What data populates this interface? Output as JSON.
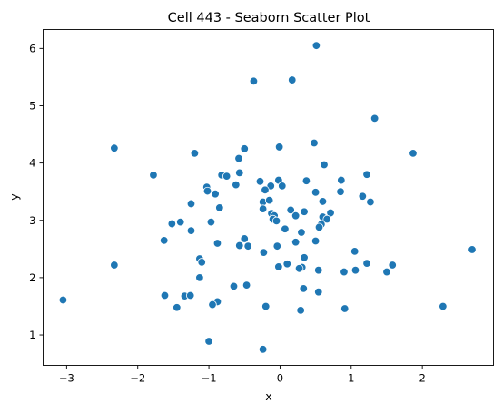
{
  "chart_data": {
    "type": "scatter",
    "title": "Cell 443 - Seaborn Scatter Plot",
    "xlabel": "x",
    "ylabel": "y",
    "xlim": [
      -3.33,
      3.0
    ],
    "ylim": [
      0.47,
      6.33
    ],
    "xticks": [
      -3,
      -2,
      -1,
      0,
      1,
      2
    ],
    "yticks": [
      1,
      2,
      3,
      4,
      5,
      6
    ],
    "grid": false,
    "marker_color": "#1f77b4",
    "points": [
      [
        0.51,
        6.05
      ],
      [
        -0.37,
        5.43
      ],
      [
        0.17,
        5.45
      ],
      [
        1.33,
        4.78
      ],
      [
        -2.33,
        4.26
      ],
      [
        -1.2,
        4.17
      ],
      [
        -0.5,
        4.25
      ],
      [
        -0.01,
        4.28
      ],
      [
        0.48,
        4.35
      ],
      [
        1.87,
        4.17
      ],
      [
        -0.58,
        4.08
      ],
      [
        0.62,
        3.97
      ],
      [
        -1.78,
        3.79
      ],
      [
        -0.82,
        3.79
      ],
      [
        -0.75,
        3.77
      ],
      [
        -0.57,
        3.83
      ],
      [
        1.22,
        3.8
      ],
      [
        -0.28,
        3.68
      ],
      [
        -0.13,
        3.6
      ],
      [
        -0.02,
        3.7
      ],
      [
        0.03,
        3.6
      ],
      [
        0.37,
        3.69
      ],
      [
        0.86,
        3.7
      ],
      [
        -1.03,
        3.58
      ],
      [
        -1.02,
        3.51
      ],
      [
        -0.91,
        3.46
      ],
      [
        -0.62,
        3.62
      ],
      [
        -0.21,
        3.53
      ],
      [
        0.5,
        3.49
      ],
      [
        0.85,
        3.5
      ],
      [
        1.16,
        3.42
      ],
      [
        -1.25,
        3.29
      ],
      [
        -0.85,
        3.22
      ],
      [
        -0.24,
        3.32
      ],
      [
        -0.15,
        3.35
      ],
      [
        0.6,
        3.33
      ],
      [
        1.27,
        3.32
      ],
      [
        -0.24,
        3.2
      ],
      [
        0.15,
        3.18
      ],
      [
        0.34,
        3.15
      ],
      [
        0.71,
        3.13
      ],
      [
        -0.12,
        3.12
      ],
      [
        -0.08,
        3.08
      ],
      [
        0.22,
        3.08
      ],
      [
        0.6,
        3.06
      ],
      [
        0.66,
        3.02
      ],
      [
        -0.1,
        3.02
      ],
      [
        -0.05,
        2.99
      ],
      [
        -1.4,
        2.97
      ],
      [
        -0.97,
        2.97
      ],
      [
        -1.52,
        2.94
      ],
      [
        0.58,
        2.93
      ],
      [
        0.55,
        2.88
      ],
      [
        0.3,
        2.79
      ],
      [
        0.07,
        2.85
      ],
      [
        -1.25,
        2.82
      ],
      [
        -0.5,
        2.68
      ],
      [
        -0.88,
        2.6
      ],
      [
        -0.57,
        2.56
      ],
      [
        -0.45,
        2.55
      ],
      [
        -0.04,
        2.55
      ],
      [
        0.22,
        2.62
      ],
      [
        0.5,
        2.64
      ],
      [
        -1.63,
        2.65
      ],
      [
        -0.23,
        2.44
      ],
      [
        1.05,
        2.46
      ],
      [
        0.34,
        2.35
      ],
      [
        2.7,
        2.49
      ],
      [
        -1.13,
        2.33
      ],
      [
        -1.1,
        2.27
      ],
      [
        0.1,
        2.24
      ],
      [
        0.31,
        2.18
      ],
      [
        0.27,
        2.16
      ],
      [
        -0.02,
        2.19
      ],
      [
        -2.33,
        2.22
      ],
      [
        0.54,
        2.13
      ],
      [
        0.9,
        2.1
      ],
      [
        1.06,
        2.13
      ],
      [
        1.22,
        2.25
      ],
      [
        1.5,
        2.1
      ],
      [
        1.58,
        2.22
      ],
      [
        -1.13,
        2.0
      ],
      [
        -0.47,
        1.87
      ],
      [
        -0.65,
        1.85
      ],
      [
        0.33,
        1.81
      ],
      [
        0.54,
        1.75
      ],
      [
        -1.62,
        1.69
      ],
      [
        -1.34,
        1.68
      ],
      [
        -1.26,
        1.69
      ],
      [
        -3.05,
        1.61
      ],
      [
        -0.88,
        1.58
      ],
      [
        -0.95,
        1.53
      ],
      [
        -1.45,
        1.48
      ],
      [
        -0.2,
        1.5
      ],
      [
        2.29,
        1.5
      ],
      [
        0.91,
        1.46
      ],
      [
        0.29,
        1.43
      ],
      [
        -1.0,
        0.89
      ],
      [
        -0.24,
        0.75
      ]
    ]
  }
}
